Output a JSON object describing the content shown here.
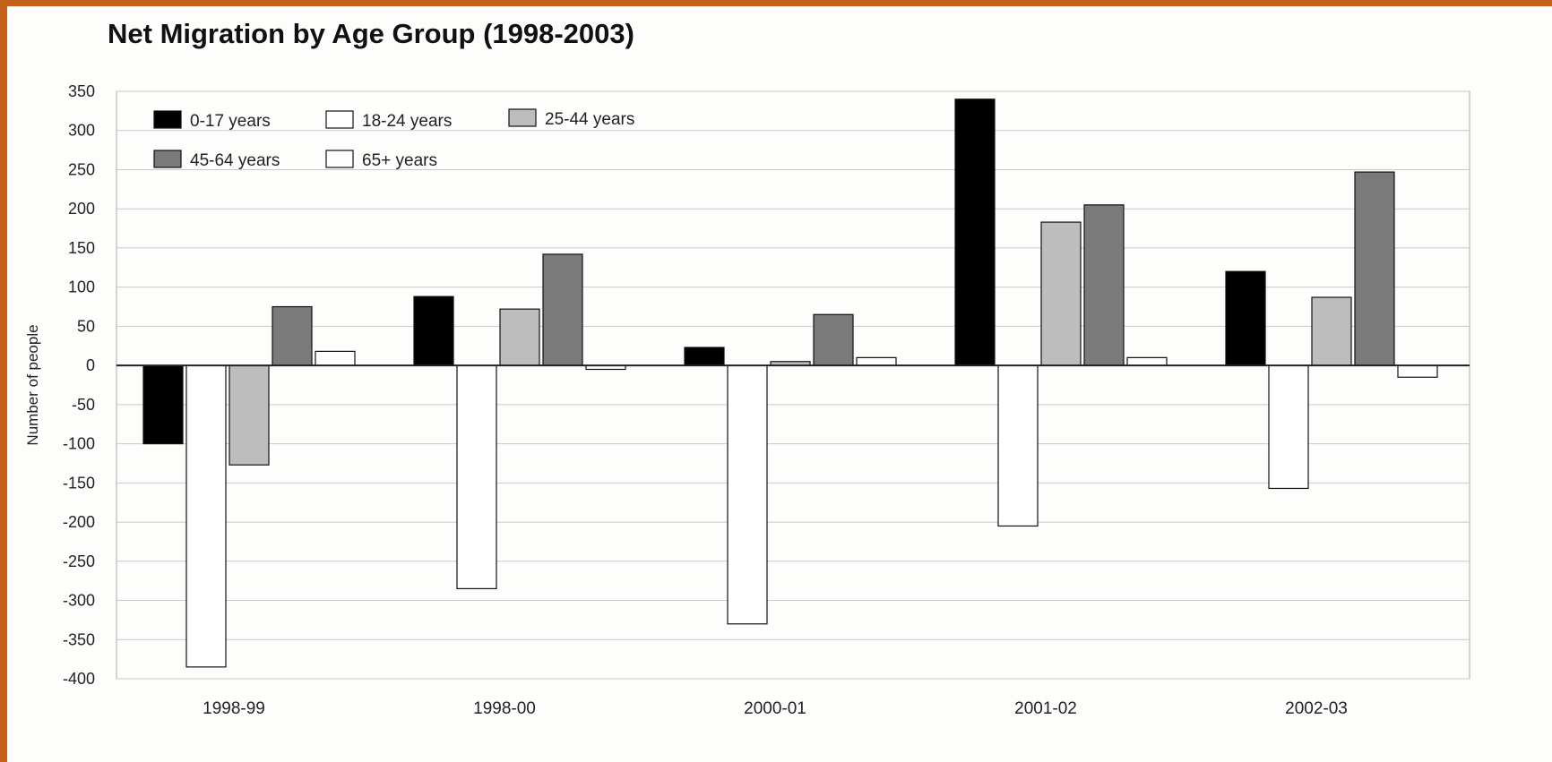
{
  "chart_data": {
    "type": "bar",
    "title": "Net Migration by Age Group (1998-2003)",
    "xlabel": "",
    "ylabel": "Number of people",
    "ylim": [
      -400,
      350
    ],
    "yticks": [
      350,
      300,
      250,
      200,
      150,
      100,
      50,
      0,
      -50,
      -100,
      -150,
      -200,
      -250,
      -300,
      -350,
      -400
    ],
    "categories": [
      "1998-99",
      "1998-00",
      "2000-01",
      "2001-02",
      "2002-03"
    ],
    "legend_position": "top-left",
    "grid": true,
    "series": [
      {
        "name": "0-17 years",
        "color": "#000000",
        "values": [
          -100,
          88,
          23,
          340,
          120
        ]
      },
      {
        "name": "18-24 years",
        "color": "#ffffff",
        "values": [
          -385,
          -285,
          -330,
          -205,
          -157
        ]
      },
      {
        "name": "25-44 years",
        "color": "#bdbdbd",
        "values": [
          -127,
          72,
          5,
          183,
          87
        ]
      },
      {
        "name": "45-64 years",
        "color": "#7a7a7a",
        "values": [
          75,
          142,
          65,
          205,
          247
        ]
      },
      {
        "name": "65+ years",
        "color": "#ffffff",
        "values": [
          18,
          -5,
          10,
          10,
          -15
        ]
      }
    ]
  }
}
